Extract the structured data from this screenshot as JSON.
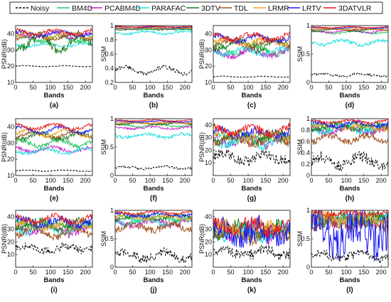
{
  "legend": {
    "items": [
      {
        "name": "Noisy",
        "color": "#000000",
        "dash": true
      },
      {
        "name": "BM4D",
        "color": "#22c55e",
        "dash": false
      },
      {
        "name": "PCABM4D",
        "color": "#cc22cc",
        "dash": false
      },
      {
        "name": "PARAFAC",
        "color": "#22e0e0",
        "dash": false
      },
      {
        "name": "3DTV",
        "color": "#1a7a1a",
        "dash": false
      },
      {
        "name": "TDL",
        "color": "#a0521f",
        "dash": false
      },
      {
        "name": "LRMR",
        "color": "#f0a020",
        "dash": false
      },
      {
        "name": "LRTV",
        "color": "#1a1aee",
        "dash": false
      },
      {
        "name": "3DATVLR",
        "color": "#ee1a1a",
        "dash": false
      }
    ]
  },
  "chart_data": [
    {
      "id": "a",
      "caption": "(a)",
      "type": "line",
      "xlabel": "Bands",
      "ylabel": "PSNR(dB)",
      "xlim": [
        0,
        220
      ],
      "ylim": [
        10,
        45
      ],
      "xticks": [
        "0",
        "50",
        "100",
        "150",
        "200"
      ],
      "yticks": [
        "10",
        "20",
        "30",
        "40"
      ],
      "series": [
        {
          "name": "Noisy",
          "base": 20,
          "amp": 0.3,
          "noise": 0.2
        },
        {
          "name": "BM4D",
          "base": 37,
          "amp": 2,
          "noise": 1.5
        },
        {
          "name": "PCABM4D",
          "base": 39,
          "amp": 1.5,
          "noise": 1
        },
        {
          "name": "PARAFAC",
          "base": 33,
          "amp": 1,
          "noise": 0.8
        },
        {
          "name": "3DTV",
          "base": 35,
          "amp": 4,
          "noise": 3
        },
        {
          "name": "TDL",
          "base": 38,
          "amp": 1.5,
          "noise": 1
        },
        {
          "name": "LRMR",
          "base": 39,
          "amp": 1.5,
          "noise": 1
        },
        {
          "name": "LRTV",
          "base": 40,
          "amp": 1.5,
          "noise": 1
        },
        {
          "name": "3DATVLR",
          "base": 41,
          "amp": 1.5,
          "noise": 1
        }
      ]
    },
    {
      "id": "b",
      "caption": "(b)",
      "type": "line",
      "xlabel": "Bands",
      "ylabel": "SSIM",
      "xlim": [
        0,
        220
      ],
      "ylim": [
        0.2,
        1.0
      ],
      "xticks": [
        "0",
        "50",
        "100",
        "150",
        "200"
      ],
      "yticks": [
        "0.2",
        "0.4",
        "0.6",
        "0.8",
        "1"
      ],
      "series": [
        {
          "name": "Noisy",
          "base": 0.37,
          "amp": 0.05,
          "noise": 0.03
        },
        {
          "name": "BM4D",
          "base": 0.95,
          "amp": 0.01,
          "noise": 0.01
        },
        {
          "name": "PCABM4D",
          "base": 0.96,
          "amp": 0.01,
          "noise": 0.01
        },
        {
          "name": "PARAFAC",
          "base": 0.9,
          "amp": 0.02,
          "noise": 0.015
        },
        {
          "name": "3DTV",
          "base": 0.95,
          "amp": 0.01,
          "noise": 0.01
        },
        {
          "name": "TDL",
          "base": 0.97,
          "amp": 0.005,
          "noise": 0.005
        },
        {
          "name": "LRMR",
          "base": 0.97,
          "amp": 0.005,
          "noise": 0.005
        },
        {
          "name": "LRTV",
          "base": 0.98,
          "amp": 0.005,
          "noise": 0.005
        },
        {
          "name": "3DATVLR",
          "base": 0.985,
          "amp": 0.005,
          "noise": 0.004
        }
      ]
    },
    {
      "id": "c",
      "caption": "(c)",
      "type": "line",
      "xlabel": "Bands",
      "ylabel": "PSNR(dB)",
      "xlim": [
        0,
        220
      ],
      "ylim": [
        10,
        45
      ],
      "xticks": [
        "0",
        "50",
        "100",
        "150",
        "200"
      ],
      "yticks": [
        "10",
        "20",
        "30",
        "40"
      ],
      "series": [
        {
          "name": "Noisy",
          "base": 13.5,
          "amp": 0.3,
          "noise": 0.2
        },
        {
          "name": "BM4D",
          "base": 30,
          "amp": 3,
          "noise": 2
        },
        {
          "name": "PCABM4D",
          "base": 28,
          "amp": 2,
          "noise": 2
        },
        {
          "name": "PARAFAC",
          "base": 29,
          "amp": 2,
          "noise": 1.5
        },
        {
          "name": "3DTV",
          "base": 33,
          "amp": 3,
          "noise": 2
        },
        {
          "name": "TDL",
          "base": 34,
          "amp": 2,
          "noise": 1.5
        },
        {
          "name": "LRMR",
          "base": 35,
          "amp": 2,
          "noise": 1.5
        },
        {
          "name": "LRTV",
          "base": 37,
          "amp": 2,
          "noise": 1.5
        },
        {
          "name": "3DATVLR",
          "base": 38,
          "amp": 2,
          "noise": 1.5
        }
      ]
    },
    {
      "id": "d",
      "caption": "(d)",
      "type": "line",
      "xlabel": "Bands",
      "ylabel": "SSIM",
      "xlim": [
        0,
        220
      ],
      "ylim": [
        0.0,
        1.0
      ],
      "xticks": [
        "0",
        "50",
        "100",
        "150",
        "200"
      ],
      "yticks": [
        "0",
        "0.5",
        "1"
      ],
      "series": [
        {
          "name": "Noisy",
          "base": 0.13,
          "amp": 0.02,
          "noise": 0.02
        },
        {
          "name": "BM4D",
          "base": 0.88,
          "amp": 0.02,
          "noise": 0.015
        },
        {
          "name": "PCABM4D",
          "base": 0.9,
          "amp": 0.02,
          "noise": 0.015
        },
        {
          "name": "PARAFAC",
          "base": 0.7,
          "amp": 0.04,
          "noise": 0.03
        },
        {
          "name": "3DTV",
          "base": 0.92,
          "amp": 0.02,
          "noise": 0.01
        },
        {
          "name": "TDL",
          "base": 0.93,
          "amp": 0.01,
          "noise": 0.01
        },
        {
          "name": "LRMR",
          "base": 0.94,
          "amp": 0.01,
          "noise": 0.01
        },
        {
          "name": "LRTV",
          "base": 0.96,
          "amp": 0.01,
          "noise": 0.01
        },
        {
          "name": "3DATVLR",
          "base": 0.97,
          "amp": 0.01,
          "noise": 0.008
        }
      ]
    },
    {
      "id": "e",
      "caption": "(e)",
      "type": "line",
      "xlabel": "Bands",
      "ylabel": "PSNR(dB)",
      "xlim": [
        0,
        220
      ],
      "ylim": [
        10,
        45
      ],
      "xticks": [
        "0",
        "50",
        "100",
        "150",
        "200"
      ],
      "yticks": [
        "10",
        "20",
        "30",
        "40"
      ],
      "series": [
        {
          "name": "Noisy",
          "base": 13,
          "amp": 0.4,
          "noise": 0.3
        },
        {
          "name": "BM4D",
          "base": 30,
          "amp": 2,
          "noise": 1.5
        },
        {
          "name": "PCABM4D",
          "base": 26,
          "amp": 1.5,
          "noise": 1
        },
        {
          "name": "PARAFAC",
          "base": 25,
          "amp": 1.5,
          "noise": 1
        },
        {
          "name": "3DTV",
          "base": 34,
          "amp": 2,
          "noise": 1.5
        },
        {
          "name": "TDL",
          "base": 35,
          "amp": 2,
          "noise": 1
        },
        {
          "name": "LRMR",
          "base": 36,
          "amp": 2,
          "noise": 1
        },
        {
          "name": "LRTV",
          "base": 38,
          "amp": 2,
          "noise": 1
        },
        {
          "name": "3DATVLR",
          "base": 40,
          "amp": 1.5,
          "noise": 1
        }
      ]
    },
    {
      "id": "f",
      "caption": "(f)",
      "type": "line",
      "xlabel": "Bands",
      "ylabel": "SSIM",
      "xlim": [
        0,
        220
      ],
      "ylim": [
        0.0,
        1.0
      ],
      "xticks": [
        "0",
        "50",
        "100",
        "150",
        "200"
      ],
      "yticks": [
        "0",
        "0.5",
        "1"
      ],
      "series": [
        {
          "name": "Noisy",
          "base": 0.14,
          "amp": 0.02,
          "noise": 0.02
        },
        {
          "name": "BM4D",
          "base": 0.88,
          "amp": 0.02,
          "noise": 0.015
        },
        {
          "name": "PCABM4D",
          "base": 0.84,
          "amp": 0.02,
          "noise": 0.02
        },
        {
          "name": "PARAFAC",
          "base": 0.7,
          "amp": 0.03,
          "noise": 0.03
        },
        {
          "name": "3DTV",
          "base": 0.91,
          "amp": 0.02,
          "noise": 0.01
        },
        {
          "name": "TDL",
          "base": 0.92,
          "amp": 0.01,
          "noise": 0.01
        },
        {
          "name": "LRMR",
          "base": 0.93,
          "amp": 0.01,
          "noise": 0.01
        },
        {
          "name": "LRTV",
          "base": 0.95,
          "amp": 0.01,
          "noise": 0.01
        },
        {
          "name": "3DATVLR",
          "base": 0.97,
          "amp": 0.01,
          "noise": 0.008
        }
      ]
    },
    {
      "id": "g",
      "caption": "(g)",
      "type": "line",
      "xlabel": "Bands",
      "ylabel": "PSNR(dB)",
      "xlim": [
        0,
        220
      ],
      "ylim": [
        0,
        45
      ],
      "xticks": [
        "0",
        "50",
        "100",
        "150",
        "200"
      ],
      "yticks": [
        "10",
        "20",
        "30",
        "40"
      ],
      "series": [
        {
          "name": "Noisy",
          "base": 15,
          "amp": 3,
          "noise": 4
        },
        {
          "name": "BM4D",
          "base": 30,
          "amp": 3,
          "noise": 3
        },
        {
          "name": "PCABM4D",
          "base": 28,
          "amp": 3,
          "noise": 3
        },
        {
          "name": "PARAFAC",
          "base": 27,
          "amp": 3,
          "noise": 3
        },
        {
          "name": "3DTV",
          "base": 31,
          "amp": 3,
          "noise": 3
        },
        {
          "name": "TDL",
          "base": 28,
          "amp": 3,
          "noise": 3
        },
        {
          "name": "LRMR",
          "base": 32,
          "amp": 3,
          "noise": 3
        },
        {
          "name": "LRTV",
          "base": 34,
          "amp": 3,
          "noise": 3
        },
        {
          "name": "3DATVLR",
          "base": 36,
          "amp": 3,
          "noise": 3
        }
      ]
    },
    {
      "id": "h",
      "caption": "(h)",
      "type": "line",
      "xlabel": "Bands",
      "ylabel": "SSIM",
      "xlim": [
        0,
        220
      ],
      "ylim": [
        0.0,
        1.0
      ],
      "xticks": [
        "0",
        "50",
        "100",
        "150",
        "200"
      ],
      "yticks": [
        "0",
        "0.2",
        "0.4",
        "0.6",
        "0.8",
        "1"
      ],
      "series": [
        {
          "name": "Noisy",
          "base": 0.25,
          "amp": 0.08,
          "noise": 0.1
        },
        {
          "name": "BM4D",
          "base": 0.85,
          "amp": 0.05,
          "noise": 0.06
        },
        {
          "name": "PCABM4D",
          "base": 0.8,
          "amp": 0.05,
          "noise": 0.06
        },
        {
          "name": "PARAFAC",
          "base": 0.82,
          "amp": 0.05,
          "noise": 0.06
        },
        {
          "name": "3DTV",
          "base": 0.86,
          "amp": 0.05,
          "noise": 0.05
        },
        {
          "name": "TDL",
          "base": 0.65,
          "amp": 0.06,
          "noise": 0.06
        },
        {
          "name": "LRMR",
          "base": 0.85,
          "amp": 0.04,
          "noise": 0.05
        },
        {
          "name": "LRTV",
          "base": 0.9,
          "amp": 0.04,
          "noise": 0.04
        },
        {
          "name": "3DATVLR",
          "base": 0.95,
          "amp": 0.02,
          "noise": 0.02
        }
      ]
    },
    {
      "id": "i",
      "caption": "(i)",
      "type": "line",
      "xlabel": "Bands",
      "ylabel": "PSNR(dB)",
      "xlim": [
        0,
        220
      ],
      "ylim": [
        0,
        45
      ],
      "xticks": [
        "0",
        "50",
        "100",
        "150",
        "200"
      ],
      "yticks": [
        "10",
        "20",
        "30",
        "40"
      ],
      "series": [
        {
          "name": "Noisy",
          "base": 15,
          "amp": 2,
          "noise": 3
        },
        {
          "name": "BM4D",
          "base": 33,
          "amp": 3,
          "noise": 3
        },
        {
          "name": "PCABM4D",
          "base": 30,
          "amp": 3,
          "noise": 3
        },
        {
          "name": "PARAFAC",
          "base": 31,
          "amp": 3,
          "noise": 3
        },
        {
          "name": "3DTV",
          "base": 34,
          "amp": 3,
          "noise": 3
        },
        {
          "name": "TDL",
          "base": 28,
          "amp": 3,
          "noise": 3
        },
        {
          "name": "LRMR",
          "base": 34,
          "amp": 3,
          "noise": 3
        },
        {
          "name": "LRTV",
          "base": 36,
          "amp": 3,
          "noise": 3
        },
        {
          "name": "3DATVLR",
          "base": 38,
          "amp": 3,
          "noise": 2
        }
      ]
    },
    {
      "id": "j",
      "caption": "(j)",
      "type": "line",
      "xlabel": "Bands",
      "ylabel": "SSIM",
      "xlim": [
        0,
        220
      ],
      "ylim": [
        0.0,
        1.0
      ],
      "xticks": [
        "0",
        "50",
        "100",
        "150",
        "200"
      ],
      "yticks": [
        "0",
        "0.5",
        "1"
      ],
      "series": [
        {
          "name": "Noisy",
          "base": 0.2,
          "amp": 0.06,
          "noise": 0.08
        },
        {
          "name": "BM4D",
          "base": 0.85,
          "amp": 0.04,
          "noise": 0.05
        },
        {
          "name": "PCABM4D",
          "base": 0.78,
          "amp": 0.05,
          "noise": 0.06
        },
        {
          "name": "PARAFAC",
          "base": 0.8,
          "amp": 0.05,
          "noise": 0.05
        },
        {
          "name": "3DTV",
          "base": 0.88,
          "amp": 0.04,
          "noise": 0.04
        },
        {
          "name": "TDL",
          "base": 0.7,
          "amp": 0.05,
          "noise": 0.06
        },
        {
          "name": "LRMR",
          "base": 0.88,
          "amp": 0.04,
          "noise": 0.04
        },
        {
          "name": "LRTV",
          "base": 0.92,
          "amp": 0.03,
          "noise": 0.03
        },
        {
          "name": "3DATVLR",
          "base": 0.96,
          "amp": 0.02,
          "noise": 0.02
        }
      ]
    },
    {
      "id": "k",
      "caption": "(k)",
      "type": "line",
      "xlabel": "Bands",
      "ylabel": "PSNR(dB)",
      "xlim": [
        0,
        220
      ],
      "ylim": [
        0,
        45
      ],
      "xticks": [
        "0",
        "50",
        "100",
        "150",
        "200"
      ],
      "yticks": [
        "10",
        "20",
        "30",
        "40"
      ],
      "series": [
        {
          "name": "Noisy",
          "base": 12,
          "amp": 3,
          "noise": 4
        },
        {
          "name": "BM4D",
          "base": 30,
          "amp": 4,
          "noise": 5
        },
        {
          "name": "PCABM4D",
          "base": 28,
          "amp": 4,
          "noise": 5
        },
        {
          "name": "PARAFAC",
          "base": 28,
          "amp": 4,
          "noise": 5
        },
        {
          "name": "3DTV",
          "base": 30,
          "amp": 4,
          "noise": 5
        },
        {
          "name": "TDL",
          "base": 27,
          "amp": 4,
          "noise": 5
        },
        {
          "name": "LRMR",
          "base": 30,
          "amp": 4,
          "noise": 5
        },
        {
          "name": "LRTV",
          "base": 28,
          "amp": 6,
          "noise": 9
        },
        {
          "name": "3DATVLR",
          "base": 33,
          "amp": 4,
          "noise": 5
        }
      ]
    },
    {
      "id": "l",
      "caption": "(l)",
      "type": "line",
      "xlabel": "Bands",
      "ylabel": "SSIM",
      "xlim": [
        0,
        220
      ],
      "ylim": [
        0.0,
        1.0
      ],
      "xticks": [
        "0",
        "50",
        "100",
        "150",
        "200"
      ],
      "yticks": [
        "0",
        "0.5",
        "1"
      ],
      "series": [
        {
          "name": "Noisy",
          "base": 0.2,
          "amp": 0.06,
          "noise": 0.08
        },
        {
          "name": "BM4D",
          "base": 0.85,
          "amp": 0.05,
          "noise": 0.1
        },
        {
          "name": "PCABM4D",
          "base": 0.8,
          "amp": 0.05,
          "noise": 0.1
        },
        {
          "name": "PARAFAC",
          "base": 0.82,
          "amp": 0.05,
          "noise": 0.1
        },
        {
          "name": "3DTV",
          "base": 0.86,
          "amp": 0.05,
          "noise": 0.1
        },
        {
          "name": "TDL",
          "base": 0.75,
          "amp": 0.05,
          "noise": 0.1
        },
        {
          "name": "LRMR",
          "base": 0.86,
          "amp": 0.05,
          "noise": 0.1
        },
        {
          "name": "LRTV",
          "base": 0.6,
          "amp": 0.2,
          "noise": 0.35
        },
        {
          "name": "3DATVLR",
          "base": 0.95,
          "amp": 0.03,
          "noise": 0.05
        }
      ]
    }
  ]
}
